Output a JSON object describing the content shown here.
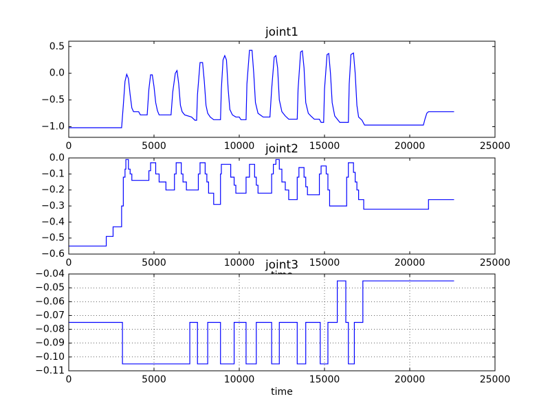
{
  "chart_data": [
    {
      "type": "line",
      "title": "joint1",
      "color": "#0000ff",
      "grid": false,
      "xlim": [
        0,
        25000
      ],
      "xticks": [
        0,
        5000,
        10000,
        15000,
        20000,
        25000
      ],
      "ylim": [
        -1.2,
        0.6
      ],
      "yticks": [
        {
          "value": -1.0,
          "label": "−1.0"
        },
        {
          "value": -0.5,
          "label": "−0.5"
        },
        {
          "value": 0.0,
          "label": "0.0"
        },
        {
          "value": 0.5,
          "label": "0.5"
        }
      ],
      "x": [
        0,
        3100,
        3200,
        3300,
        3400,
        3500,
        3600,
        3700,
        3800,
        4100,
        4200,
        4600,
        4700,
        4800,
        4900,
        5000,
        5100,
        5200,
        5300,
        6000,
        6100,
        6250,
        6350,
        6450,
        6550,
        6650,
        6800,
        7200,
        7400,
        7500,
        7550,
        7700,
        7850,
        7950,
        8050,
        8150,
        8300,
        8500,
        8900,
        8950,
        9050,
        9150,
        9250,
        9350,
        9450,
        9600,
        9800,
        10000,
        10100,
        10400,
        10450,
        10600,
        10750,
        10850,
        10950,
        11100,
        11400,
        11800,
        11900,
        12050,
        12150,
        12250,
        12350,
        12500,
        12700,
        12900,
        13400,
        13450,
        13600,
        13700,
        13800,
        13900,
        14050,
        14200,
        14400,
        14700,
        14800,
        14950,
        15000,
        15150,
        15250,
        15350,
        15450,
        15600,
        15800,
        15900,
        16400,
        16450,
        16550,
        16700,
        16800,
        16900,
        17000,
        17200,
        17350,
        20800,
        20900,
        21000,
        21100,
        22600
      ],
      "values": [
        -1.02,
        -1.02,
        -0.6,
        -0.15,
        -0.02,
        -0.1,
        -0.4,
        -0.65,
        -0.72,
        -0.72,
        -0.78,
        -0.78,
        -0.3,
        -0.03,
        -0.03,
        -0.25,
        -0.55,
        -0.7,
        -0.78,
        -0.78,
        -0.35,
        0.0,
        0.05,
        -0.2,
        -0.6,
        -0.72,
        -0.78,
        -0.82,
        -0.88,
        -0.88,
        -0.4,
        0.2,
        0.2,
        -0.15,
        -0.6,
        -0.75,
        -0.82,
        -0.87,
        -0.87,
        -0.3,
        0.25,
        0.33,
        0.25,
        -0.3,
        -0.68,
        -0.78,
        -0.82,
        -0.82,
        -0.87,
        -0.87,
        -0.2,
        0.43,
        0.43,
        0.0,
        -0.55,
        -0.75,
        -0.82,
        -0.82,
        -0.3,
        0.3,
        0.33,
        0.1,
        -0.5,
        -0.72,
        -0.8,
        -0.86,
        -0.86,
        -0.3,
        0.4,
        0.42,
        0.1,
        -0.55,
        -0.75,
        -0.8,
        -0.86,
        -0.86,
        -0.92,
        -0.92,
        -0.3,
        0.35,
        0.37,
        0.0,
        -0.55,
        -0.8,
        -0.88,
        -0.92,
        -0.92,
        -0.2,
        0.35,
        0.38,
        0.0,
        -0.6,
        -0.82,
        -0.88,
        -0.97,
        -0.97,
        -0.85,
        -0.75,
        -0.72,
        -0.72
      ]
    },
    {
      "type": "line",
      "title": "joint2",
      "xlabel": "time",
      "color": "#0000ff",
      "grid": false,
      "xlim": [
        0,
        25000
      ],
      "xticks": [
        0,
        5000,
        10000,
        15000,
        20000,
        25000
      ],
      "ylim": [
        -0.6,
        0.0
      ],
      "yticks": [
        {
          "value": -0.6,
          "label": "−0.6"
        },
        {
          "value": -0.5,
          "label": "−0.5"
        },
        {
          "value": -0.4,
          "label": "−0.4"
        },
        {
          "value": -0.3,
          "label": "−0.3"
        },
        {
          "value": -0.2,
          "label": "−0.2"
        },
        {
          "value": -0.1,
          "label": "−0.1"
        },
        {
          "value": 0.0,
          "label": "0.0"
        }
      ],
      "x": [
        0,
        2200,
        2200,
        2600,
        2600,
        3100,
        3100,
        3200,
        3200,
        3300,
        3300,
        3350,
        3350,
        3500,
        3500,
        3600,
        3600,
        3700,
        3700,
        4700,
        4700,
        4800,
        4800,
        5100,
        5100,
        5300,
        5300,
        5700,
        5700,
        6200,
        6200,
        6300,
        6300,
        6600,
        6600,
        6700,
        6700,
        6900,
        6900,
        7600,
        7600,
        7700,
        7700,
        8000,
        8000,
        8100,
        8100,
        8200,
        8200,
        8500,
        8500,
        8900,
        8900,
        8950,
        8950,
        9500,
        9500,
        9700,
        9700,
        9800,
        9800,
        10400,
        10400,
        10600,
        10600,
        10900,
        10900,
        11000,
        11000,
        11100,
        11100,
        11900,
        11900,
        12000,
        12000,
        12150,
        12150,
        12350,
        12350,
        12500,
        12500,
        12700,
        12700,
        12900,
        12900,
        13400,
        13400,
        13500,
        13500,
        13800,
        13800,
        13900,
        13900,
        14000,
        14000,
        14700,
        14700,
        14800,
        14800,
        15100,
        15100,
        15200,
        15200,
        15300,
        15300,
        16300,
        16300,
        16400,
        16400,
        16700,
        16700,
        16800,
        16800,
        16900,
        16900,
        17000,
        17000,
        17300,
        17300,
        21100,
        21100,
        22600
      ],
      "values": [
        -0.55,
        -0.55,
        -0.49,
        -0.49,
        -0.43,
        -0.43,
        -0.3,
        -0.3,
        -0.12,
        -0.12,
        -0.07,
        -0.07,
        -0.01,
        -0.01,
        -0.07,
        -0.07,
        -0.1,
        -0.1,
        -0.14,
        -0.14,
        -0.08,
        -0.08,
        -0.03,
        -0.03,
        -0.1,
        -0.1,
        -0.15,
        -0.15,
        -0.2,
        -0.2,
        -0.1,
        -0.1,
        -0.03,
        -0.03,
        -0.1,
        -0.1,
        -0.15,
        -0.15,
        -0.2,
        -0.2,
        -0.1,
        -0.1,
        -0.03,
        -0.03,
        -0.1,
        -0.1,
        -0.15,
        -0.15,
        -0.22,
        -0.22,
        -0.29,
        -0.29,
        -0.1,
        -0.1,
        -0.04,
        -0.04,
        -0.12,
        -0.12,
        -0.17,
        -0.17,
        -0.22,
        -0.22,
        -0.12,
        -0.12,
        -0.04,
        -0.04,
        -0.12,
        -0.12,
        -0.17,
        -0.17,
        -0.22,
        -0.22,
        -0.1,
        -0.1,
        -0.04,
        -0.04,
        -0.01,
        -0.01,
        -0.07,
        -0.07,
        -0.15,
        -0.15,
        -0.2,
        -0.2,
        -0.26,
        -0.26,
        -0.12,
        -0.12,
        -0.06,
        -0.06,
        -0.12,
        -0.12,
        -0.18,
        -0.18,
        -0.23,
        -0.23,
        -0.1,
        -0.1,
        -0.05,
        -0.05,
        -0.1,
        -0.1,
        -0.2,
        -0.2,
        -0.3,
        -0.3,
        -0.12,
        -0.12,
        -0.03,
        -0.03,
        -0.09,
        -0.09,
        -0.15,
        -0.15,
        -0.2,
        -0.2,
        -0.26,
        -0.26,
        -0.32,
        -0.32,
        -0.26,
        -0.26
      ]
    },
    {
      "type": "line",
      "title": "joint3",
      "xlabel": "time",
      "color": "#0000ff",
      "grid": true,
      "xlim": [
        0,
        25000
      ],
      "xticks": [
        0,
        5000,
        10000,
        15000,
        20000,
        25000
      ],
      "ylim": [
        -0.11,
        -0.04
      ],
      "yticks": [
        {
          "value": -0.11,
          "label": "−0.11"
        },
        {
          "value": -0.1,
          "label": "−0.10"
        },
        {
          "value": -0.09,
          "label": "−0.09"
        },
        {
          "value": -0.08,
          "label": "−0.08"
        },
        {
          "value": -0.07,
          "label": "−0.07"
        },
        {
          "value": -0.06,
          "label": "−0.06"
        },
        {
          "value": -0.05,
          "label": "−0.05"
        },
        {
          "value": -0.04,
          "label": "−0.04"
        }
      ],
      "x": [
        0,
        3150,
        3150,
        7100,
        7100,
        7550,
        7550,
        8150,
        8150,
        8900,
        8900,
        9700,
        9700,
        10400,
        10400,
        11000,
        11000,
        11900,
        11900,
        12350,
        12350,
        13400,
        13400,
        13900,
        13900,
        14750,
        14750,
        15200,
        15200,
        15750,
        15750,
        16250,
        16250,
        16400,
        16400,
        16750,
        16750,
        17250,
        17250,
        22600
      ],
      "values": [
        -0.075,
        -0.075,
        -0.105,
        -0.105,
        -0.075,
        -0.075,
        -0.105,
        -0.105,
        -0.075,
        -0.075,
        -0.105,
        -0.105,
        -0.075,
        -0.075,
        -0.105,
        -0.105,
        -0.075,
        -0.075,
        -0.105,
        -0.105,
        -0.075,
        -0.075,
        -0.105,
        -0.105,
        -0.075,
        -0.075,
        -0.105,
        -0.105,
        -0.075,
        -0.075,
        -0.045,
        -0.045,
        -0.075,
        -0.075,
        -0.105,
        -0.105,
        -0.075,
        -0.075,
        -0.045,
        -0.045
      ]
    }
  ]
}
